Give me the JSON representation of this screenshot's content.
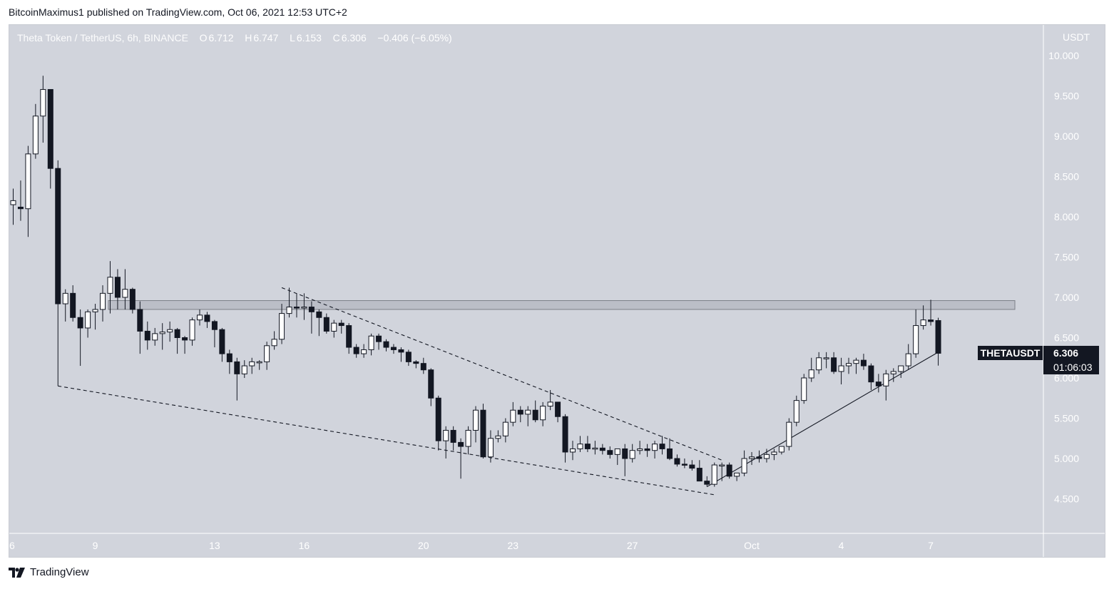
{
  "header": {
    "publisher": "BitcoinMaximus1 published on TradingView.com, Oct 06, 2021 12:53 UTC+2"
  },
  "legend": {
    "symbol": "Theta Token / TetherUS, 6h, BINANCE",
    "o_label": "O",
    "o": "6.712",
    "h_label": "H",
    "h": "6.747",
    "l_label": "L",
    "l": "6.153",
    "c_label": "C",
    "c": "6.306",
    "change": "−0.406 (−6.05%)"
  },
  "currency": "USDT",
  "last_price_tag": {
    "symbol": "THETAUSDT",
    "price": "6.306",
    "countdown": "01:06:03"
  },
  "footer": {
    "brand": "TradingView"
  },
  "colors": {
    "background": "#d1d4dc",
    "up_candle_body": "#ffffff",
    "down_candle_body": "#131722",
    "wick": "#131722",
    "text_light": "#ffffff",
    "text_dark": "#131722"
  },
  "chart_data": {
    "type": "candlestick",
    "title": "Theta Token / TetherUS, 6h, BINANCE",
    "interval": "6h",
    "y_axis": {
      "unit": "USDT",
      "ticks": [
        "10.000",
        "9.500",
        "9.000",
        "8.500",
        "8.000",
        "7.500",
        "7.000",
        "6.500",
        "6.000",
        "5.500",
        "5.000",
        "4.500"
      ],
      "ylim": [
        4.0,
        10.4
      ]
    },
    "x_axis": {
      "ticks": [
        {
          "label": "6",
          "i": -1
        },
        {
          "label": "9",
          "i": 11
        },
        {
          "label": "13",
          "i": 27
        },
        {
          "label": "16",
          "i": 39
        },
        {
          "label": "20",
          "i": 55
        },
        {
          "label": "23",
          "i": 67
        },
        {
          "label": "27",
          "i": 83
        },
        {
          "label": "Oct",
          "i": 99
        },
        {
          "label": "4",
          "i": 111
        },
        {
          "label": "7",
          "i": 123
        }
      ]
    },
    "candles": [
      [
        8.15,
        8.35,
        7.9,
        8.2
      ],
      [
        8.12,
        8.45,
        7.95,
        8.1
      ],
      [
        8.1,
        8.88,
        7.75,
        8.78
      ],
      [
        8.78,
        9.4,
        8.72,
        9.25
      ],
      [
        9.25,
        9.75,
        8.92,
        9.58
      ],
      [
        9.58,
        9.58,
        8.35,
        8.6
      ],
      [
        8.6,
        8.7,
        5.9,
        6.92
      ],
      [
        6.92,
        7.1,
        6.7,
        7.05
      ],
      [
        7.05,
        7.15,
        6.7,
        6.75
      ],
      [
        6.75,
        6.85,
        6.15,
        6.62
      ],
      [
        6.62,
        6.85,
        6.5,
        6.82
      ],
      [
        6.82,
        6.92,
        6.6,
        6.85
      ],
      [
        6.85,
        7.15,
        6.7,
        7.05
      ],
      [
        7.05,
        7.45,
        6.8,
        7.25
      ],
      [
        7.25,
        7.35,
        6.85,
        7.0
      ],
      [
        7.0,
        7.35,
        6.85,
        7.1
      ],
      [
        7.1,
        7.12,
        6.8,
        6.85
      ],
      [
        6.85,
        6.95,
        6.3,
        6.58
      ],
      [
        6.58,
        6.7,
        6.35,
        6.47
      ],
      [
        6.47,
        6.62,
        6.4,
        6.55
      ],
      [
        6.55,
        6.68,
        6.35,
        6.57
      ],
      [
        6.57,
        6.7,
        6.45,
        6.6
      ],
      [
        6.6,
        6.62,
        6.3,
        6.5
      ],
      [
        6.5,
        6.52,
        6.3,
        6.47
      ],
      [
        6.47,
        6.75,
        6.4,
        6.72
      ],
      [
        6.72,
        6.85,
        6.65,
        6.78
      ],
      [
        6.78,
        6.82,
        6.62,
        6.7
      ],
      [
        6.7,
        6.72,
        6.38,
        6.6
      ],
      [
        6.6,
        6.62,
        6.2,
        6.3
      ],
      [
        6.3,
        6.35,
        6.05,
        6.2
      ],
      [
        6.2,
        6.25,
        5.72,
        6.05
      ],
      [
        6.05,
        6.22,
        6.0,
        6.15
      ],
      [
        6.15,
        6.25,
        6.05,
        6.2
      ],
      [
        6.2,
        6.22,
        6.1,
        6.2
      ],
      [
        6.2,
        6.45,
        6.1,
        6.4
      ],
      [
        6.4,
        6.58,
        6.35,
        6.48
      ],
      [
        6.48,
        6.92,
        6.42,
        6.8
      ],
      [
        6.8,
        7.12,
        6.75,
        6.88
      ],
      [
        6.88,
        7.05,
        6.75,
        6.87
      ],
      [
        6.87,
        7.05,
        6.72,
        6.88
      ],
      [
        6.88,
        6.95,
        6.55,
        6.82
      ],
      [
        6.82,
        6.85,
        6.52,
        6.75
      ],
      [
        6.75,
        6.8,
        6.55,
        6.58
      ],
      [
        6.58,
        6.72,
        6.5,
        6.68
      ],
      [
        6.68,
        6.72,
        6.55,
        6.65
      ],
      [
        6.65,
        6.68,
        6.3,
        6.38
      ],
      [
        6.38,
        6.42,
        6.25,
        6.3
      ],
      [
        6.3,
        6.42,
        6.25,
        6.35
      ],
      [
        6.35,
        6.55,
        6.28,
        6.52
      ],
      [
        6.52,
        6.55,
        6.35,
        6.45
      ],
      [
        6.45,
        6.48,
        6.33,
        6.38
      ],
      [
        6.38,
        6.42,
        6.3,
        6.35
      ],
      [
        6.35,
        6.38,
        6.2,
        6.32
      ],
      [
        6.32,
        6.35,
        6.15,
        6.2
      ],
      [
        6.2,
        6.22,
        6.12,
        6.18
      ],
      [
        6.18,
        6.25,
        6.05,
        6.1
      ],
      [
        6.1,
        6.12,
        5.65,
        5.75
      ],
      [
        5.75,
        5.78,
        5.1,
        5.22
      ],
      [
        5.22,
        5.4,
        5.0,
        5.35
      ],
      [
        5.35,
        5.4,
        5.1,
        5.2
      ],
      [
        5.2,
        5.25,
        4.75,
        5.15
      ],
      [
        5.15,
        5.4,
        5.05,
        5.35
      ],
      [
        5.35,
        5.65,
        5.2,
        5.6
      ],
      [
        5.6,
        5.68,
        5.0,
        5.02
      ],
      [
        5.02,
        5.35,
        4.95,
        5.25
      ],
      [
        5.25,
        5.35,
        5.2,
        5.28
      ],
      [
        5.28,
        5.5,
        5.2,
        5.45
      ],
      [
        5.45,
        5.7,
        5.4,
        5.6
      ],
      [
        5.6,
        5.65,
        5.45,
        5.55
      ],
      [
        5.55,
        5.65,
        5.4,
        5.6
      ],
      [
        5.6,
        5.72,
        5.45,
        5.48
      ],
      [
        5.48,
        5.7,
        5.4,
        5.65
      ],
      [
        5.65,
        5.85,
        5.6,
        5.7
      ],
      [
        5.7,
        5.7,
        5.45,
        5.52
      ],
      [
        5.52,
        5.55,
        4.95,
        5.08
      ],
      [
        5.08,
        5.22,
        4.98,
        5.12
      ],
      [
        5.12,
        5.28,
        5.08,
        5.18
      ],
      [
        5.18,
        5.28,
        5.08,
        5.12
      ],
      [
        5.12,
        5.22,
        5.05,
        5.13
      ],
      [
        5.13,
        5.18,
        5.05,
        5.1
      ],
      [
        5.1,
        5.15,
        5.0,
        5.05
      ],
      [
        5.05,
        5.12,
        4.92,
        5.12
      ],
      [
        5.12,
        5.18,
        4.78,
        5.0
      ],
      [
        5.0,
        5.18,
        4.95,
        5.1
      ],
      [
        5.1,
        5.22,
        5.05,
        5.12
      ],
      [
        5.12,
        5.18,
        5.02,
        5.1
      ],
      [
        5.1,
        5.22,
        5.0,
        5.18
      ],
      [
        5.18,
        5.28,
        5.05,
        5.12
      ],
      [
        5.12,
        5.25,
        4.98,
        5.0
      ],
      [
        5.0,
        5.05,
        4.9,
        4.93
      ],
      [
        4.93,
        5.0,
        4.88,
        4.92
      ],
      [
        4.92,
        4.98,
        4.85,
        4.88
      ],
      [
        4.88,
        4.98,
        4.72,
        4.72
      ],
      [
        4.72,
        4.78,
        4.65,
        4.68
      ],
      [
        4.68,
        4.95,
        4.65,
        4.92
      ],
      [
        4.92,
        4.95,
        4.72,
        4.92
      ],
      [
        4.92,
        4.95,
        4.75,
        4.78
      ],
      [
        4.78,
        4.82,
        4.72,
        4.82
      ],
      [
        4.82,
        5.1,
        4.78,
        5.0
      ],
      [
        5.0,
        5.08,
        4.92,
        5.02
      ],
      [
        5.02,
        5.1,
        4.95,
        5.0
      ],
      [
        5.0,
        5.12,
        4.95,
        5.05
      ],
      [
        5.05,
        5.12,
        4.98,
        5.08
      ],
      [
        5.08,
        5.15,
        5.05,
        5.15
      ],
      [
        5.15,
        5.5,
        5.1,
        5.45
      ],
      [
        5.45,
        5.78,
        5.4,
        5.72
      ],
      [
        5.72,
        6.05,
        5.68,
        6.0
      ],
      [
        6.0,
        6.25,
        5.95,
        6.1
      ],
      [
        6.1,
        6.32,
        6.05,
        6.25
      ],
      [
        6.25,
        6.32,
        6.12,
        6.25
      ],
      [
        6.25,
        6.32,
        6.05,
        6.08
      ],
      [
        6.08,
        6.25,
        5.92,
        6.15
      ],
      [
        6.15,
        6.25,
        6.05,
        6.18
      ],
      [
        6.18,
        6.25,
        6.05,
        6.22
      ],
      [
        6.22,
        6.3,
        6.1,
        6.15
      ],
      [
        6.15,
        6.18,
        5.85,
        5.95
      ],
      [
        5.95,
        6.05,
        5.82,
        5.9
      ],
      [
        5.9,
        6.1,
        5.72,
        6.05
      ],
      [
        6.05,
        6.12,
        5.95,
        6.08
      ],
      [
        6.08,
        6.15,
        6.0,
        6.15
      ],
      [
        6.15,
        6.42,
        6.1,
        6.3
      ],
      [
        6.3,
        6.85,
        6.25,
        6.65
      ],
      [
        6.65,
        6.9,
        6.6,
        6.72
      ],
      [
        6.72,
        6.97,
        6.65,
        6.7
      ],
      [
        6.712,
        6.747,
        6.153,
        6.306
      ]
    ],
    "annotations": {
      "resistance_zone": {
        "y_low": 6.85,
        "y_high": 6.96
      },
      "descending_resistance_line": {
        "from": {
          "i": 36,
          "y": 7.12
        },
        "to": {
          "i": 95,
          "y": 4.98
        }
      },
      "descending_support_line": {
        "from": {
          "i": 6,
          "y": 5.9
        },
        "to": {
          "i": 94,
          "y": 4.55
        }
      },
      "ascending_support_line": {
        "from": {
          "i": 93,
          "y": 4.65
        },
        "to": {
          "i": 124,
          "y": 6.32
        }
      }
    },
    "grid": false
  }
}
